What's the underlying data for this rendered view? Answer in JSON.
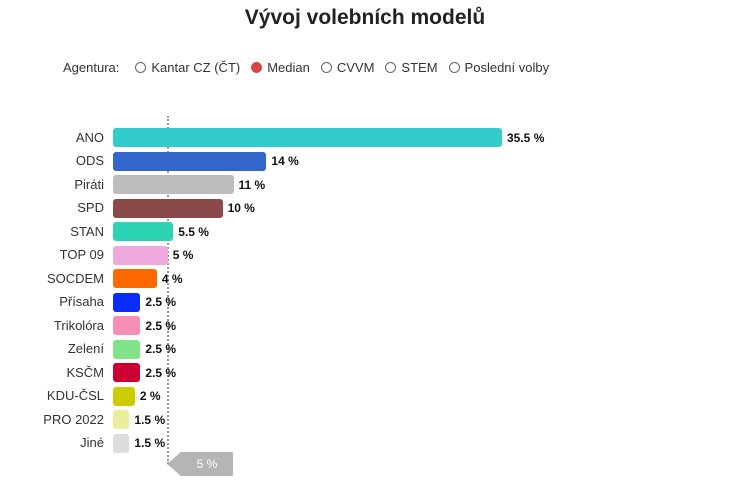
{
  "title": "Vývoj volebních modelů",
  "filter": {
    "label": "Agentura:",
    "options": [
      {
        "label": "Kantar CZ (ČT)",
        "selected": false
      },
      {
        "label": "Median",
        "selected": true
      },
      {
        "label": "CVVM",
        "selected": false
      },
      {
        "label": "STEM",
        "selected": false
      },
      {
        "label": "Poslední volby",
        "selected": false
      }
    ],
    "selected_color": "#d64545"
  },
  "threshold": {
    "value": 5,
    "label": "5 %",
    "color": "#b5b5b5"
  },
  "chart_data": {
    "type": "bar",
    "orientation": "horizontal",
    "title": "Vývoj volebních modelů",
    "categories": [
      "ANO",
      "ODS",
      "Piráti",
      "SPD",
      "STAN",
      "TOP 09",
      "SOCDEM",
      "Přísaha",
      "Trikolóra",
      "Zelení",
      "KSČM",
      "KDU-ČSL",
      "PRO 2022",
      "Jiné"
    ],
    "values": [
      35.5,
      14,
      11,
      10,
      5.5,
      5,
      4,
      2.5,
      2.5,
      2.5,
      2.5,
      2,
      1.5,
      1.5
    ],
    "value_labels": [
      "35.5 %",
      "14 %",
      "11 %",
      "10 %",
      "5.5 %",
      "5 %",
      "4 %",
      "2.5 %",
      "2.5 %",
      "2.5 %",
      "2.5 %",
      "2 %",
      "1.5 %",
      "1.5 %"
    ],
    "colors": [
      "#33cccc",
      "#3366cc",
      "#bdbdbd",
      "#8b4a4a",
      "#2dd4b4",
      "#eeaadd",
      "#ff6a00",
      "#0a2cff",
      "#f58fb6",
      "#80e38a",
      "#cc0033",
      "#cccc00",
      "#e8ee9a",
      "#dddddd"
    ],
    "xlim": [
      0,
      35.5
    ]
  }
}
